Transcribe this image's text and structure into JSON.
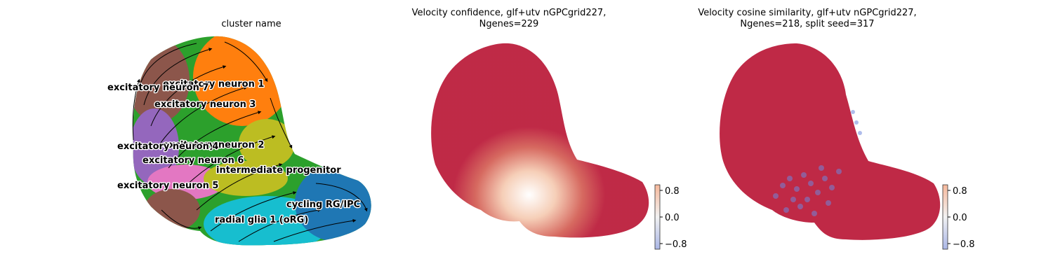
{
  "panels": [
    {
      "title": "cluster name"
    },
    {
      "title": "Velocity confidence, glf+utv nGPCgrid227,\nNgenes=229"
    },
    {
      "title": "Velocity cosine similarity, glf+utv nGPCgrid227,\nNgenes=218, split seed=317"
    }
  ],
  "chart_data": [
    {
      "type": "scatter",
      "title": "cluster name",
      "grid": false,
      "axes_visible": false,
      "overlay": "velocity streamlines (arrows)",
      "clusters": [
        {
          "name": "excitatory neuron 1",
          "color": "#ff7f0e"
        },
        {
          "name": "excitatory neuron 7",
          "color": "#8c564b"
        },
        {
          "name": "excitatory neuron 3",
          "color": "#9467bd"
        },
        {
          "name": "excitatory neuron 2",
          "color": "#bcbd22"
        },
        {
          "name": "excitatory neuron 4",
          "color": "#2ca02c"
        },
        {
          "name": "excitatory neuron 6",
          "color": "#e377c2"
        },
        {
          "name": "intermediate progenitor",
          "color": "#7f7f7f"
        },
        {
          "name": "excitatory neuron 5",
          "color": "#8c564b"
        },
        {
          "name": "cycling RG/IPC",
          "color": "#1f77b4"
        },
        {
          "name": "radial glia 1 (oRG)",
          "color": "#17becf"
        }
      ]
    },
    {
      "type": "scatter",
      "title": "Velocity confidence, glf+utv nGPCgrid227, Ngenes=229",
      "colormap": "coolwarm",
      "colorbar": {
        "ticks": [
          "0.8",
          "0.0",
          "−0.8"
        ],
        "range": [
          -1,
          1
        ]
      },
      "value_summary": "nearly all cells near 1.0 (dark red); lower values (light) in the bridge region between the two lobes"
    },
    {
      "type": "scatter",
      "title": "Velocity cosine similarity, glf+utv nGPCgrid227, Ngenes=218, split seed=317",
      "colormap": "coolwarm",
      "colorbar": {
        "ticks": [
          "0.8",
          "0.0",
          "−0.8"
        ],
        "range": [
          -1,
          1
        ]
      },
      "value_summary": "mostly near 1.0 (red); scattered negative values (blue) in the bridge region between the two lobes"
    }
  ],
  "colors": {
    "high": "#b40426",
    "mid": "#dddddd",
    "low": "#3b4cc0"
  }
}
